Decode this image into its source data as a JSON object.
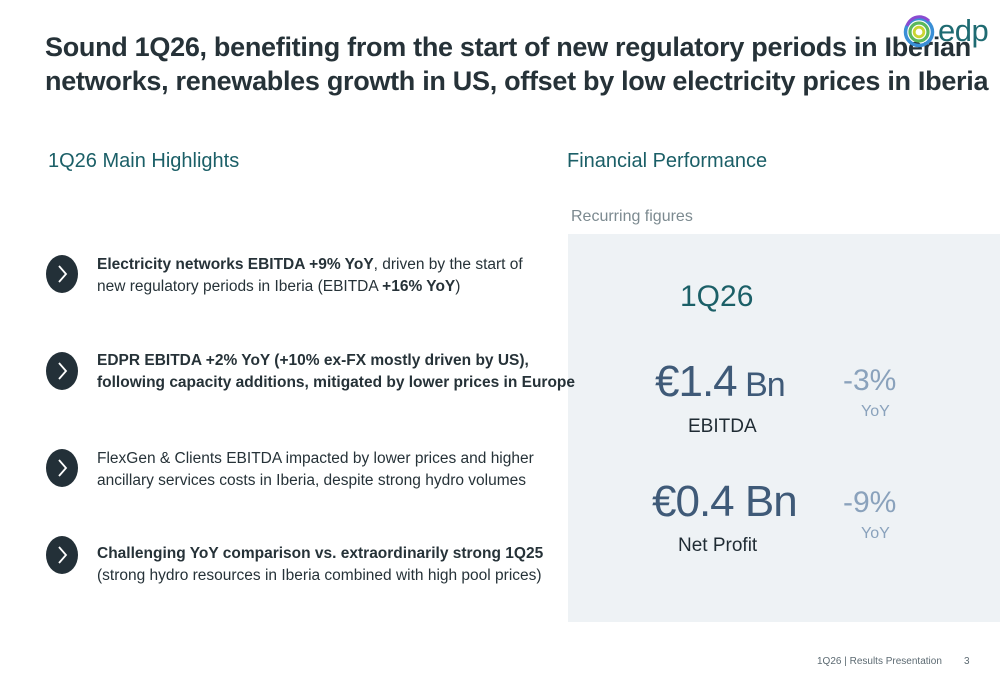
{
  "title": {
    "line1": "Sound 1Q26, benefiting from the start of new regulatory periods in Iberian",
    "line2": "networks, renewables growth in US, offset by low electricity prices in Iberia"
  },
  "logo": {
    "text": "edp",
    "icon": "edp-swirl-logo"
  },
  "highlights": {
    "title": "1Q26 Main Highlights",
    "items": [
      {
        "icon": "chevron-right-icon",
        "line1_bold": "Electricity networks EBITDA +9% YoY",
        "line1_rest": ", driven by the start of",
        "line2_pre": "new regulatory periods in Iberia (EBITDA ",
        "line2_bold": "+16% YoY",
        "line2_post": ")"
      },
      {
        "icon": "chevron-right-icon",
        "line1_bold": "EDPR EBITDA +2% YoY (+10% ex-FX mostly driven by US),",
        "line2_bold": "following capacity additions, mitigated by lower prices in Europe"
      },
      {
        "icon": "chevron-right-icon",
        "line1": "FlexGen & Clients EBITDA impacted  by lower prices and higher",
        "line2": "ancillary services costs in Iberia, despite strong hydro volumes"
      },
      {
        "icon": "chevron-right-icon",
        "line1_bold": "Challenging YoY comparison vs. extraordinarily strong 1Q25",
        "line2": "(strong hydro resources in Iberia combined with high pool prices)"
      }
    ]
  },
  "financial": {
    "title": "Financial Performance",
    "subtitle": "Recurring figures",
    "period": "1Q26",
    "ebitda": {
      "value": "€1.4",
      "unit": " Bn",
      "label": "EBITDA",
      "change": "-3%",
      "yoy": "YoY"
    },
    "net_profit": {
      "value": "€0.4 Bn",
      "label": "Net Profit",
      "change": "-9%",
      "yoy": "YoY"
    }
  },
  "footer": {
    "text": "1Q26 | Results Presentation",
    "page": "3"
  },
  "colors": {
    "teal": "#1b5f67",
    "dark": "#263238",
    "panel": "#eef2f5",
    "value": "#3f5a78",
    "change": "#8aa2bc"
  }
}
